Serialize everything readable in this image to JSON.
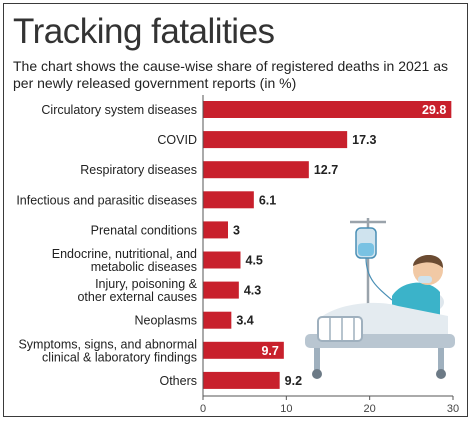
{
  "title": "Tracking fatalities",
  "subtitle": "The chart shows the cause-wise share of registered deaths in 2021 as per newly released government reports (in %)",
  "colors": {
    "bar": "#c8202c",
    "label_inside": "#ffffff",
    "label_outside": "#222222",
    "axis": "#555555"
  },
  "chart_data": {
    "type": "bar",
    "orientation": "horizontal",
    "categories": [
      [
        "Circulatory system diseases"
      ],
      [
        "COVID"
      ],
      [
        "Respiratory diseases"
      ],
      [
        "Infectious and parasitic diseases"
      ],
      [
        "Prenatal conditions"
      ],
      [
        "Endocrine, nutritional, and",
        "metabolic diseases"
      ],
      [
        "Injury, poisoning &",
        "other external causes"
      ],
      [
        "Neoplasms"
      ],
      [
        "Symptoms, signs, and abnormal",
        "clinical & laboratory findings"
      ],
      [
        "Others"
      ]
    ],
    "values": [
      29.8,
      17.3,
      12.7,
      6.1,
      3,
      4.5,
      4.3,
      3.4,
      9.7,
      9.2
    ],
    "value_labels": [
      "29.8",
      "17.3",
      "12.7",
      "6.1",
      "3",
      "4.5",
      "4.3",
      "3.4",
      "9.7",
      "9.2"
    ],
    "labels_inside": [
      true,
      false,
      false,
      false,
      false,
      false,
      false,
      false,
      true,
      false
    ],
    "xlim": [
      0,
      30
    ],
    "xticks": [
      0,
      10,
      20,
      30
    ],
    "grid": false,
    "legend": "none"
  }
}
